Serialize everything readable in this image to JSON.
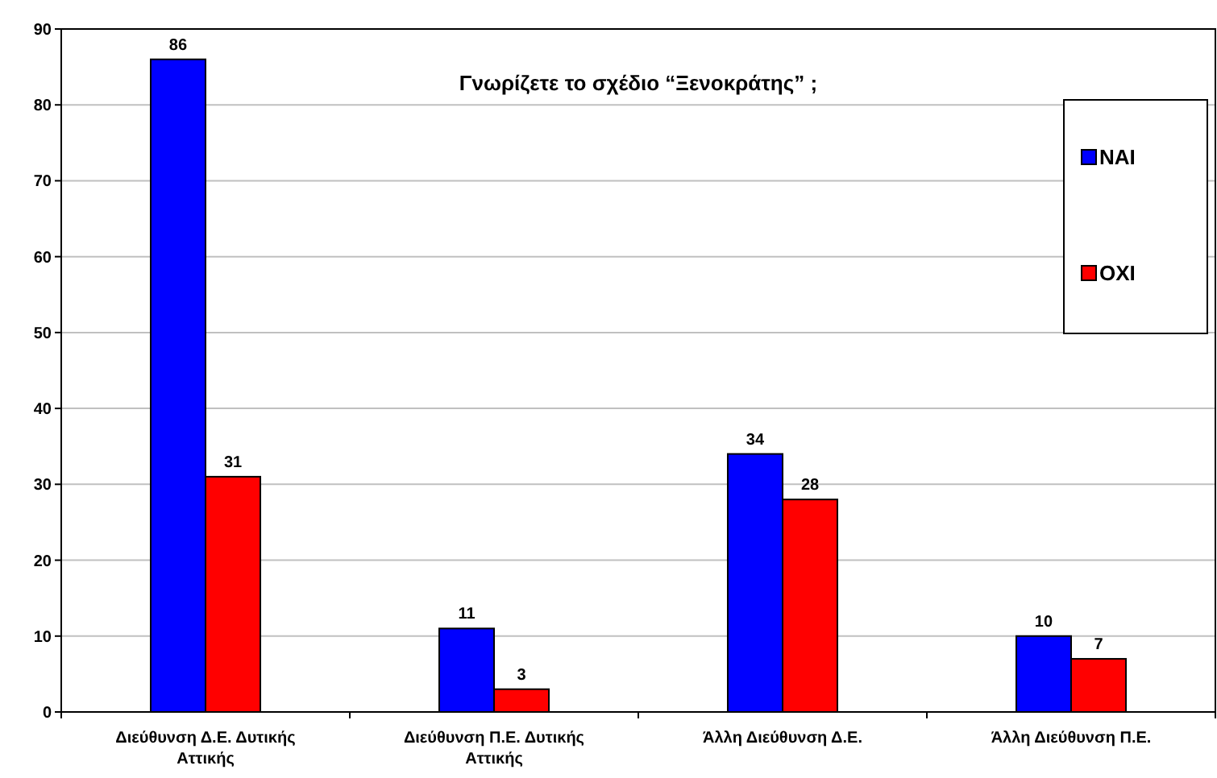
{
  "chart_data": {
    "type": "bar",
    "title": "Γνωρίζετε το σχέδιο “Ξενοκράτης” ;",
    "categories": [
      "Διεύθυνση Δ.Ε. Δυτικής Αττικής",
      "Διεύθυνση Π.Ε. Δυτικής Αττικής",
      "Άλλη Διεύθυνση Δ.Ε.",
      "Άλλη Διεύθυνση Π.Ε."
    ],
    "series": [
      {
        "name": "ΝΑΙ",
        "color": "#0000ff",
        "values": [
          86,
          11,
          34,
          10
        ]
      },
      {
        "name": "ΟΧΙ",
        "color": "#ff0000",
        "values": [
          31,
          3,
          28,
          7
        ]
      }
    ],
    "ylim": [
      0,
      90
    ],
    "yticks": [
      0,
      10,
      20,
      30,
      40,
      50,
      60,
      70,
      80,
      90
    ],
    "grid": "y",
    "legend": "top right",
    "data_labels": true
  }
}
